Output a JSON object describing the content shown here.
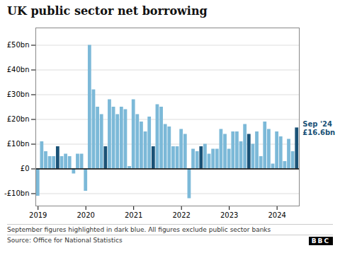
{
  "chart_data": {
    "type": "bar",
    "title": "UK public sector net borrowing",
    "footnote": "September figures highlighted in dark blue. All figures exclude public sector banks",
    "source": "Source: Office for National Statistics",
    "logo": "BBC",
    "annotations": [
      "Sep '24",
      "£16.6bn"
    ],
    "categories": [
      "2019",
      null,
      null,
      null,
      null,
      null,
      null,
      null,
      null,
      null,
      null,
      null,
      "2020",
      null,
      null,
      null,
      null,
      null,
      null,
      null,
      null,
      null,
      null,
      null,
      "2021",
      null,
      null,
      null,
      null,
      null,
      null,
      null,
      null,
      null,
      null,
      null,
      "2022",
      null,
      null,
      null,
      null,
      null,
      null,
      null,
      null,
      null,
      null,
      null,
      "2023",
      null,
      null,
      null,
      null,
      null,
      null,
      null,
      null,
      null,
      null,
      null,
      "2024",
      null,
      null,
      null,
      null,
      null
    ],
    "values": [
      -11,
      11,
      7,
      5,
      5,
      9,
      5,
      6,
      5,
      -2,
      6,
      6,
      -9,
      50,
      32,
      25,
      22,
      9,
      28,
      25,
      22,
      25,
      24,
      1,
      28,
      22,
      19,
      15,
      21,
      9,
      26,
      25,
      18,
      17,
      9,
      9,
      16,
      14,
      -12,
      8,
      7,
      9,
      10,
      6,
      8,
      8,
      16,
      14,
      8,
      15,
      15,
      11,
      18,
      14,
      10,
      15,
      5,
      19,
      16,
      2,
      15,
      13,
      3,
      12,
      7,
      16.6
    ],
    "colors": [
      "#7cb9d8",
      "#7cb9d8",
      "#7cb9d8",
      "#7cb9d8",
      "#7cb9d8",
      "#1a5276",
      "#7cb9d8",
      "#7cb9d8",
      "#7cb9d8",
      "#7cb9d8",
      "#7cb9d8",
      "#7cb9d8",
      "#7cb9d8",
      "#7cb9d8",
      "#7cb9d8",
      "#7cb9d8",
      "#7cb9d8",
      "#1a5276",
      "#7cb9d8",
      "#7cb9d8",
      "#7cb9d8",
      "#7cb9d8",
      "#7cb9d8",
      "#7cb9d8",
      "#7cb9d8",
      "#7cb9d8",
      "#7cb9d8",
      "#7cb9d8",
      "#7cb9d8",
      "#1a5276",
      "#7cb9d8",
      "#7cb9d8",
      "#7cb9d8",
      "#7cb9d8",
      "#7cb9d8",
      "#7cb9d8",
      "#7cb9d8",
      "#7cb9d8",
      "#7cb9d8",
      "#7cb9d8",
      "#7cb9d8",
      "#1a5276",
      "#7cb9d8",
      "#7cb9d8",
      "#7cb9d8",
      "#7cb9d8",
      "#7cb9d8",
      "#7cb9d8",
      "#7cb9d8",
      "#7cb9d8",
      "#7cb9d8",
      "#7cb9d8",
      "#7cb9d8",
      "#1a5276",
      "#7cb9d8",
      "#7cb9d8",
      "#7cb9d8",
      "#7cb9d8",
      "#7cb9d8",
      "#7cb9d8",
      "#7cb9d8",
      "#7cb9d8",
      "#7cb9d8",
      "#7cb9d8",
      "#7cb9d8",
      "#1a5276"
    ],
    "ylim": [
      -15,
      57
    ],
    "yticks": [
      {
        "value": -10,
        "label": "-£10bn"
      },
      {
        "value": 0,
        "label": "£0"
      },
      {
        "value": 10,
        "label": "£10bn"
      },
      {
        "value": 20,
        "label": "£20bn"
      },
      {
        "value": 30,
        "label": "£30bn"
      },
      {
        "value": 40,
        "label": "£40bn"
      },
      {
        "value": 50,
        "label": "£50bn"
      }
    ],
    "grid": true
  }
}
